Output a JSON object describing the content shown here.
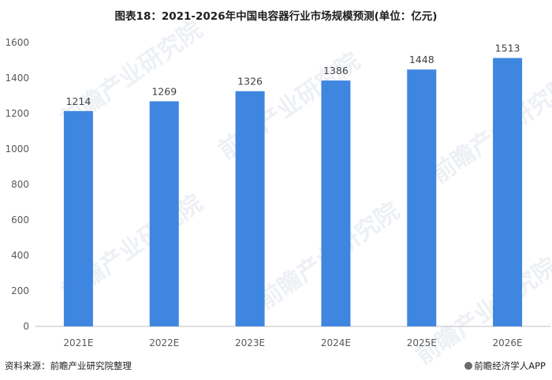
{
  "title": "图表18：2021-2026年中国电容器行业市场规模预测(单位：亿元)",
  "watermark_text": "前瞻产业研究院",
  "colors": {
    "bar": "#3f86e0",
    "axis": "#bfbfbf",
    "tick_text": "#595959",
    "label_text": "#404040"
  },
  "chart_data": {
    "type": "bar",
    "title": "图表18：2021-2026年中国电容器行业市场规模预测(单位：亿元)",
    "categories": [
      "2021E",
      "2022E",
      "2023E",
      "2024E",
      "2025E",
      "2026E"
    ],
    "values": [
      1214,
      1269,
      1326,
      1386,
      1448,
      1513
    ],
    "data_labels": [
      "1214",
      "1269",
      "1326",
      "1386",
      "1448",
      "1513"
    ],
    "yticks": [
      0,
      200,
      400,
      600,
      800,
      1000,
      1200,
      1400,
      1600
    ],
    "ylim": [
      0,
      1600
    ],
    "xlabel": "",
    "ylabel": "",
    "grid": false,
    "legend": "none"
  },
  "footer": {
    "source": "资料来源：前瞻产业研究院整理",
    "brand": "前瞻经济学人APP"
  }
}
